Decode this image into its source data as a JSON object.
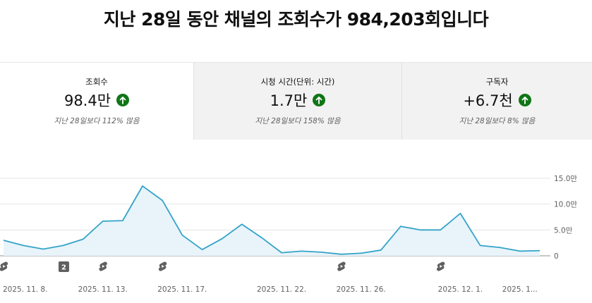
{
  "headline": "지난 28일 동안 채널의 조회수가 984,203회입니다",
  "stats": [
    {
      "label": "조회수",
      "value": "98.4만",
      "note": "지난 28일보다 112% 많음",
      "trend": "up"
    },
    {
      "label": "시청 시간(단위: 시간)",
      "value": "1.7만",
      "note": "지난 28일보다 158% 많음",
      "trend": "up"
    },
    {
      "label": "구독자",
      "value": "+6.7천",
      "note": "지난 28일보다 8% 많음",
      "trend": "up"
    }
  ],
  "colors": {
    "line": "#33a3c8",
    "fill": "#e8f4fa",
    "trend_up": "#107516",
    "badge": "#606060"
  },
  "chart_data": {
    "type": "area",
    "ylim": [
      0,
      150000
    ],
    "y_ticks": [
      {
        "label": "15.0만",
        "value": 150000
      },
      {
        "label": "10.0만",
        "value": 100000
      },
      {
        "label": "5.0만",
        "value": 50000
      },
      {
        "label": "0",
        "value": 0
      }
    ],
    "x_tick_labels": [
      "2025. 11. 8.",
      "2025. 11. 13.",
      "2025. 11. 17.",
      "2025. 11. 22.",
      "2025. 11. 26.",
      "2025. 12. 1.",
      "2025. 1..."
    ],
    "x_tick_days": [
      1,
      6,
      10,
      15,
      19,
      24,
      27
    ],
    "series": [
      {
        "values": [
          30000,
          20000,
          13000,
          20000,
          32000,
          67000,
          68000,
          135000,
          107000,
          40000,
          12000,
          33000,
          61000,
          35000,
          6000,
          9000,
          7000,
          3000,
          5000,
          11000,
          57000,
          50000,
          50000,
          82000,
          20000,
          16000,
          9000,
          10000
        ]
      }
    ],
    "markers": [
      {
        "day": 1,
        "type": "shorts",
        "text": ""
      },
      {
        "day": 4,
        "type": "count",
        "text": "2"
      },
      {
        "day": 6,
        "type": "shorts",
        "text": ""
      },
      {
        "day": 9,
        "type": "shorts",
        "text": ""
      },
      {
        "day": 18,
        "type": "shorts",
        "text": ""
      },
      {
        "day": 23,
        "type": "shorts",
        "text": ""
      }
    ],
    "grid": true
  }
}
